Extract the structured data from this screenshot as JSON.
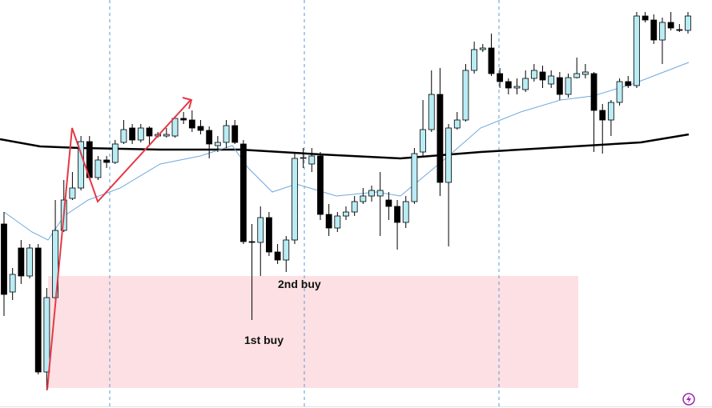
{
  "chart_data": {
    "type": "candlestick",
    "ylim": [
      0,
      510
    ],
    "up_color": "#b9ecf4",
    "down_color": "#000000",
    "annotations": [
      "1st buy",
      "2nd buy"
    ],
    "ohlc": [
      [
        230,
        245,
        115,
        142
      ],
      [
        145,
        175,
        135,
        167
      ],
      [
        200,
        210,
        155,
        165
      ],
      [
        165,
        205,
        162,
        200
      ],
      [
        200,
        205,
        42,
        45
      ],
      [
        45,
        150,
        22,
        138
      ],
      [
        138,
        260,
        135,
        222
      ],
      [
        222,
        285,
        220,
        260
      ],
      [
        262,
        295,
        260,
        275
      ],
      [
        275,
        340,
        272,
        333
      ],
      [
        333,
        340,
        285,
        288
      ],
      [
        288,
        315,
        285,
        310
      ],
      [
        310,
        315,
        300,
        307
      ],
      [
        307,
        335,
        305,
        330
      ],
      [
        332,
        360,
        330,
        348
      ],
      [
        350,
        355,
        330,
        335
      ],
      [
        335,
        355,
        332,
        350
      ],
      [
        350,
        352,
        328,
        340
      ],
      [
        340,
        345,
        338,
        342
      ],
      [
        340,
        350,
        338,
        342
      ],
      [
        340,
        365,
        338,
        362
      ],
      [
        362,
        370,
        355,
        360
      ],
      [
        360,
        372,
        345,
        350
      ],
      [
        352,
        360,
        342,
        347
      ],
      [
        347,
        352,
        312,
        330
      ],
      [
        328,
        340,
        320,
        332
      ],
      [
        332,
        360,
        325,
        353
      ],
      [
        353,
        360,
        330,
        332
      ],
      [
        330,
        335,
        205,
        208
      ],
      [
        208,
        230,
        110,
        207
      ],
      [
        207,
        252,
        165,
        238
      ],
      [
        238,
        245,
        190,
        195
      ],
      [
        195,
        205,
        180,
        185
      ],
      [
        185,
        215,
        170,
        210
      ],
      [
        210,
        320,
        205,
        312
      ],
      [
        312,
        325,
        300,
        313
      ],
      [
        305,
        325,
        295,
        315
      ],
      [
        315,
        320,
        235,
        242
      ],
      [
        242,
        255,
        215,
        225
      ],
      [
        225,
        245,
        220,
        240
      ],
      [
        240,
        252,
        235,
        245
      ],
      [
        245,
        265,
        240,
        258
      ],
      [
        258,
        275,
        255,
        265
      ],
      [
        265,
        278,
        258,
        272
      ],
      [
        265,
        295,
        215,
        272
      ],
      [
        260,
        270,
        235,
        252
      ],
      [
        252,
        260,
        198,
        232
      ],
      [
        232,
        265,
        225,
        258
      ],
      [
        258,
        325,
        255,
        318
      ],
      [
        320,
        385,
        315,
        348
      ],
      [
        348,
        422,
        345,
        392
      ],
      [
        392,
        425,
        265,
        282
      ],
      [
        282,
        355,
        202,
        350
      ],
      [
        350,
        370,
        348,
        360
      ],
      [
        360,
        430,
        358,
        422
      ],
      [
        422,
        458,
        418,
        448
      ],
      [
        448,
        455,
        445,
        450
      ],
      [
        450,
        468,
        415,
        418
      ],
      [
        418,
        425,
        400,
        408
      ],
      [
        408,
        412,
        392,
        400
      ],
      [
        400,
        412,
        392,
        402
      ],
      [
        398,
        422,
        395,
        412
      ],
      [
        412,
        430,
        408,
        422
      ],
      [
        420,
        428,
        400,
        410
      ],
      [
        405,
        422,
        400,
        415
      ],
      [
        413,
        420,
        385,
        392
      ],
      [
        392,
        418,
        388,
        413
      ],
      [
        413,
        438,
        412,
        418
      ],
      [
        417,
        430,
        412,
        420
      ],
      [
        418,
        420,
        320,
        372
      ],
      [
        372,
        380,
        318,
        360
      ],
      [
        360,
        385,
        340,
        382
      ],
      [
        382,
        412,
        378,
        408
      ],
      [
        408,
        415,
        400,
        403
      ],
      [
        403,
        495,
        400,
        490
      ],
      [
        490,
        495,
        482,
        485
      ],
      [
        485,
        492,
        455,
        460
      ],
      [
        460,
        488,
        430,
        482
      ],
      [
        482,
        495,
        472,
        475
      ],
      [
        473,
        480,
        470,
        472
      ],
      [
        472,
        495,
        468,
        490
      ]
    ]
  }
}
